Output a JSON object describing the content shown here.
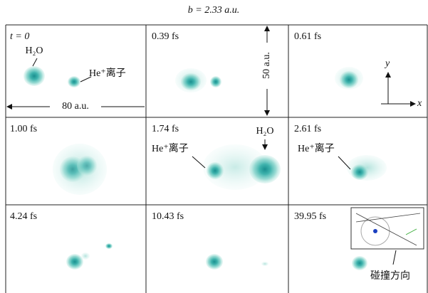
{
  "title": "b = 2.33 a.u.",
  "panels": [
    {
      "label": "t = 0",
      "annotations": [
        "H₂O",
        "He⁺离子",
        "80 a.u."
      ]
    },
    {
      "label": "0.39 fs",
      "annotations": [
        "50 a.u."
      ]
    },
    {
      "label": "0.61 fs",
      "annotations": [
        "y",
        "x"
      ]
    },
    {
      "label": "1.00 fs"
    },
    {
      "label": "1.74 fs",
      "annotations": [
        "H₂O",
        "He⁺离子"
      ]
    },
    {
      "label": "2.61 fs",
      "annotations": [
        "He⁺离子"
      ]
    },
    {
      "label": "4.24 fs"
    },
    {
      "label": "10.43 fs"
    },
    {
      "label": "39.95 fs",
      "annotations": [
        "碰撞方向"
      ]
    }
  ]
}
